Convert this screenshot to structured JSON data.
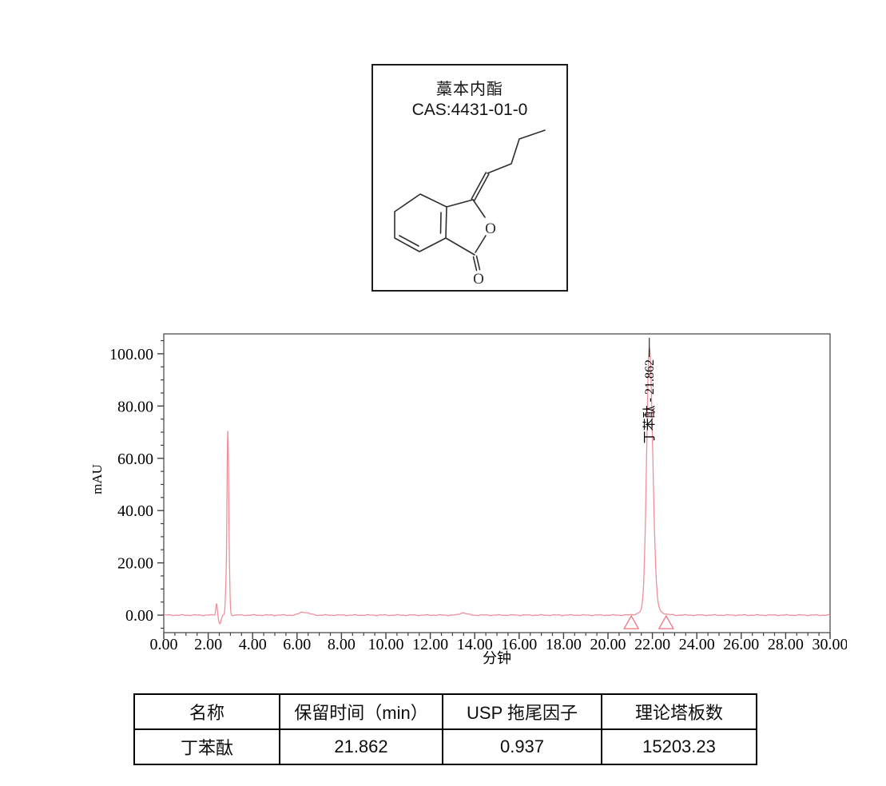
{
  "compound_card": {
    "title": "藁本内酯",
    "cas": "CAS:4431-01-0",
    "atom_labels": {
      "ring_oxygen": "O",
      "carbonyl_oxygen": "O"
    }
  },
  "chart_data": {
    "type": "line",
    "title": "",
    "xlabel": "分钟",
    "ylabel": "mAU",
    "xlim": [
      0,
      30
    ],
    "ylim": [
      -6.7,
      107.6
    ],
    "x_tick_labels": [
      "0.00",
      "2.00",
      "4.00",
      "6.00",
      "8.00",
      "10.00",
      "12.00",
      "14.00",
      "16.00",
      "18.00",
      "20.00",
      "22.00",
      "24.00",
      "26.00",
      "28.00",
      "30.00"
    ],
    "x_major_step": 2,
    "x_minor_step": 0.5,
    "y_tick_labels": [
      "0.00",
      "20.00",
      "40.00",
      "60.00",
      "80.00",
      "100.00"
    ],
    "y_major_step": 20,
    "y_minor_step": 5,
    "grid": false,
    "trace_color": "#ef8f99",
    "marker_color": "#ee7b8b",
    "frame_color": "#3f3f3f",
    "peaks": [
      {
        "center": 2.38,
        "height": 4.5,
        "sigma_left": 0.035,
        "sigma_right": 0.03
      },
      {
        "center": 2.52,
        "height": -3.2,
        "sigma_left": 0.05,
        "sigma_right": 0.06
      },
      {
        "center": 2.8,
        "height": 9.0,
        "sigma_left": 0.03,
        "sigma_right": 0.02
      },
      {
        "center": 2.88,
        "height": 70.5,
        "sigma_left": 0.035,
        "sigma_right": 0.05
      },
      {
        "center": 6.25,
        "height": 1.2,
        "sigma_left": 0.15,
        "sigma_right": 0.25
      },
      {
        "center": 13.45,
        "height": 0.9,
        "sigma_left": 0.12,
        "sigma_right": 0.18
      },
      {
        "center": 21.862,
        "height": 99.5,
        "sigma_left": 0.12,
        "sigma_right": 0.15
      },
      {
        "center": 21.93,
        "height": 3.0,
        "sigma_left": 0.35,
        "sigma_right": 0.35
      }
    ],
    "peak_annotation": {
      "text": "丁苯酞 - 21.862",
      "x_min": 21.862
    },
    "integration_markers_min": [
      21.05,
      22.62
    ]
  },
  "results_table": {
    "headers": [
      "名称",
      "保留时间（min）",
      "USP 拖尾因子",
      "理论塔板数"
    ],
    "rows": [
      {
        "name": "丁苯酞",
        "retention_time": "21.862",
        "usp_tailing": "0.937",
        "plates": "15203.23"
      }
    ]
  }
}
